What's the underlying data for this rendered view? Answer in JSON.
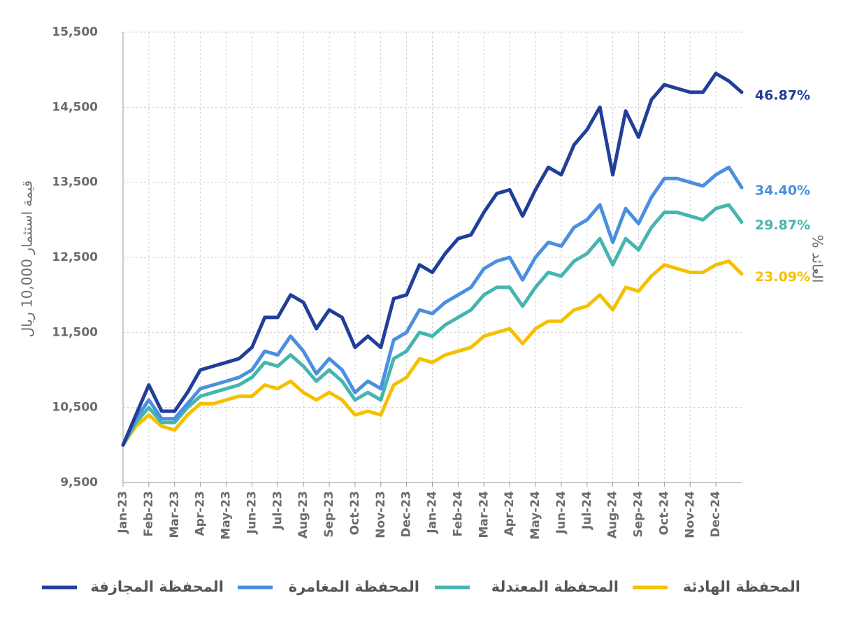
{
  "chart_data": {
    "type": "line",
    "y_label": "قيمة استثمار 10,000 ريال",
    "y2_label": "% العائد",
    "categories": [
      "Jan-23",
      null,
      "Feb-23",
      null,
      "Mar-23",
      null,
      "Apr-23",
      null,
      "May-23",
      null,
      "Jun-23",
      null,
      "Jul-23",
      null,
      "Aug-23",
      null,
      "Sep-23",
      null,
      "Oct-23",
      null,
      "Nov-23",
      null,
      "Dec-23",
      null,
      "Jan-24",
      null,
      "Feb-24",
      null,
      "Mar-24",
      null,
      "Apr-24",
      null,
      "May-24",
      null,
      "Jun-24",
      null,
      "Jul-24",
      null,
      "Aug-24",
      null,
      "Sep-24",
      null,
      "Oct-24",
      null,
      "Nov-24",
      null,
      "Dec-24",
      null,
      null
    ],
    "ylim": [
      9500,
      15500
    ],
    "yticks": [
      {
        "value": 9500,
        "label": "9,500"
      },
      {
        "value": 10500,
        "label": "10,500"
      },
      {
        "value": 11500,
        "label": "11,500"
      },
      {
        "value": 12500,
        "label": "12,500"
      },
      {
        "value": 13500,
        "label": "13,500"
      },
      {
        "value": 14500,
        "label": "14,500"
      },
      {
        "value": 15500,
        "label": "15,500"
      }
    ],
    "grid": true,
    "series": [
      {
        "name": "المحفظة المجازفة",
        "color": "#213f99",
        "end_label": "46.87%",
        "values": [
          10000,
          10400,
          10800,
          10450,
          10450,
          10700,
          11000,
          11050,
          11100,
          11150,
          11300,
          11700,
          11700,
          12000,
          11900,
          11550,
          11800,
          11700,
          11300,
          11450,
          11300,
          11950,
          12000,
          12400,
          12300,
          12550,
          12750,
          12800,
          13100,
          13350,
          13400,
          13050,
          13400,
          13700,
          13600,
          14000,
          14200,
          14500,
          13600,
          14450,
          14100,
          14600,
          14800,
          14750,
          14700,
          14700,
          14950,
          14850,
          14700
        ]
      },
      {
        "name": "المحفظة المغامرة",
        "color": "#4a8fe0",
        "end_label": "34.40%",
        "values": [
          10000,
          10350,
          10600,
          10350,
          10350,
          10550,
          10750,
          10800,
          10850,
          10900,
          11000,
          11250,
          11200,
          11450,
          11250,
          10950,
          11150,
          11000,
          10700,
          10850,
          10750,
          11400,
          11500,
          11800,
          11750,
          11900,
          12000,
          12100,
          12350,
          12450,
          12500,
          12200,
          12500,
          12700,
          12650,
          12900,
          13000,
          13200,
          12700,
          13150,
          12950,
          13300,
          13550,
          13550,
          13500,
          13450,
          13600,
          13700,
          13430
        ]
      },
      {
        "name": "المحفظة المعتدلة",
        "color": "#45b5b0",
        "end_label": "29.87%",
        "values": [
          10000,
          10300,
          10500,
          10300,
          10300,
          10500,
          10650,
          10700,
          10750,
          10800,
          10900,
          11100,
          11050,
          11200,
          11050,
          10850,
          11000,
          10850,
          10600,
          10700,
          10600,
          11150,
          11250,
          11500,
          11450,
          11600,
          11700,
          11800,
          12000,
          12100,
          12100,
          11850,
          12100,
          12300,
          12250,
          12450,
          12550,
          12750,
          12400,
          12750,
          12600,
          12900,
          13100,
          13100,
          13050,
          13000,
          13150,
          13200,
          12970
        ]
      },
      {
        "name": "المحفظة الهادئة",
        "color": "#f5c000",
        "end_label": "23.09%",
        "values": [
          10000,
          10250,
          10400,
          10250,
          10200,
          10400,
          10550,
          10550,
          10600,
          10650,
          10650,
          10800,
          10750,
          10850,
          10700,
          10600,
          10700,
          10600,
          10400,
          10450,
          10400,
          10800,
          10900,
          11150,
          11100,
          11200,
          11250,
          11300,
          11450,
          11500,
          11550,
          11350,
          11550,
          11650,
          11650,
          11800,
          11850,
          12000,
          11800,
          12100,
          12050,
          12250,
          12400,
          12350,
          12300,
          12300,
          12400,
          12450,
          12280
        ]
      }
    ]
  }
}
